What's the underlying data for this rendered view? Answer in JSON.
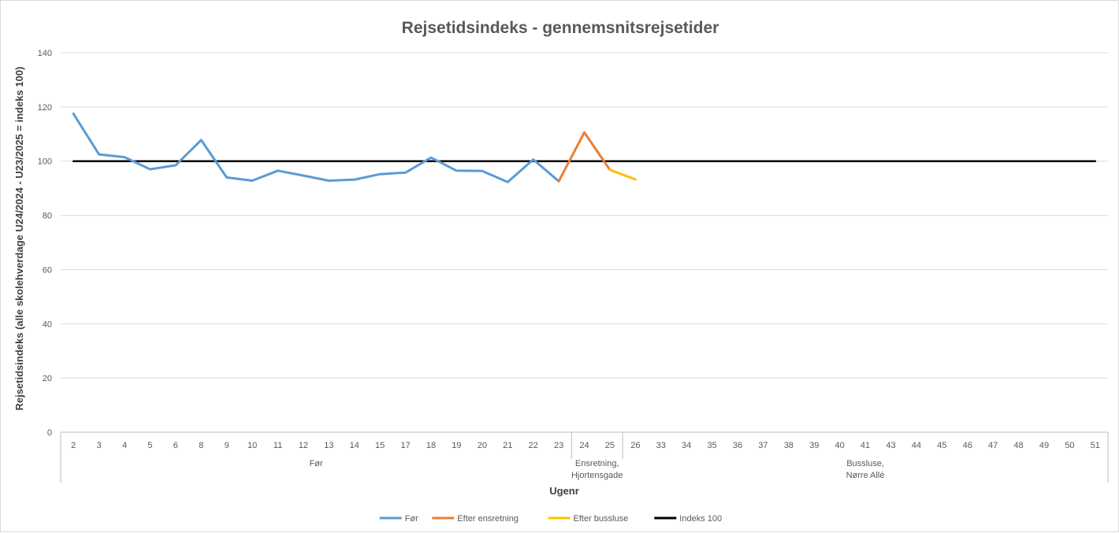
{
  "chart_data": {
    "type": "line",
    "title": "Rejsetidsindeks - gennemsnitsrejsetider",
    "xlabel": "Ugenr",
    "ylabel": "Rejsetidsindeks (alle skolehverdage U24/2024 - U23/2025 = indeks 100)",
    "ylim": [
      0,
      140
    ],
    "yticks": [
      0,
      20,
      40,
      60,
      80,
      100,
      120,
      140
    ],
    "grid": true,
    "legend_position": "bottom",
    "categories": [
      "2",
      "3",
      "4",
      "5",
      "6",
      "8",
      "9",
      "10",
      "11",
      "12",
      "13",
      "14",
      "15",
      "17",
      "18",
      "19",
      "20",
      "21",
      "22",
      "23",
      "24",
      "25",
      "26",
      "33",
      "34",
      "35",
      "36",
      "37",
      "38",
      "39",
      "40",
      "41",
      "43",
      "44",
      "45",
      "46",
      "47",
      "48",
      "49",
      "50",
      "51"
    ],
    "groups": [
      {
        "label": [
          "Før"
        ],
        "start": 0,
        "end": 19
      },
      {
        "label": [
          "Ensretning,",
          "Hjortensgade"
        ],
        "start": 20,
        "end": 21
      },
      {
        "label": [
          "Bussluse,",
          "Nørre Allé"
        ],
        "start": 22,
        "end": 40
      }
    ],
    "series": [
      {
        "name": "Før",
        "color": "#5b9bd5",
        "x": [
          "2",
          "3",
          "4",
          "5",
          "6",
          "8",
          "9",
          "10",
          "11",
          "12",
          "13",
          "14",
          "15",
          "17",
          "18",
          "19",
          "20",
          "21",
          "22",
          "23"
        ],
        "values": [
          117.5,
          102.5,
          101.5,
          97,
          98.5,
          107.8,
          94,
          92.8,
          96.5,
          94.7,
          92.8,
          93.2,
          95.2,
          95.8,
          101.3,
          96.5,
          96.4,
          92.3,
          100.6,
          92.6
        ]
      },
      {
        "name": "Efter ensretning",
        "color": "#ed7d31",
        "x": [
          "23",
          "24",
          "25"
        ],
        "values": [
          92.6,
          110.6,
          96.8
        ]
      },
      {
        "name": "Efter bussluse",
        "color": "#ffc000",
        "x": [
          "25",
          "26"
        ],
        "values": [
          96.8,
          93.3
        ]
      },
      {
        "name": "Indeks 100",
        "color": "#000000",
        "x": [
          "2",
          "51"
        ],
        "values": [
          100,
          100
        ]
      }
    ]
  }
}
